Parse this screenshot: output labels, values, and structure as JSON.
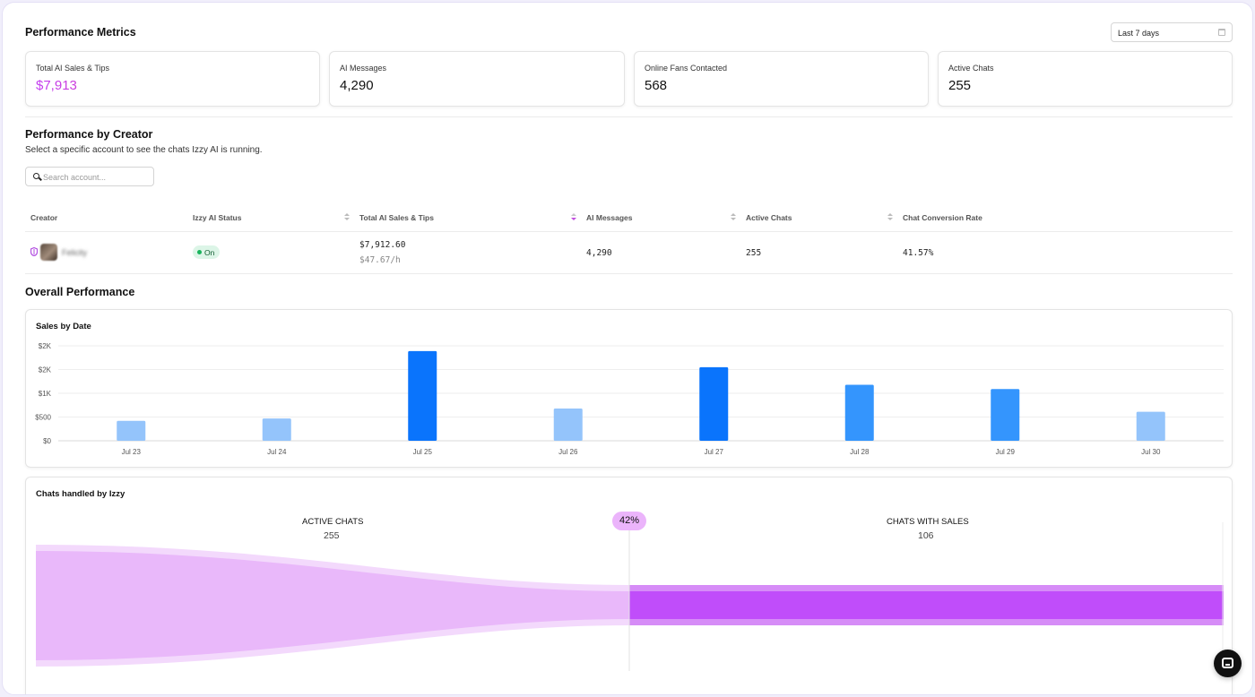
{
  "header": {
    "title": "Performance Metrics",
    "date_range": "Last 7 days"
  },
  "metrics": [
    {
      "label": "Total AI Sales & Tips",
      "value": "$7,913"
    },
    {
      "label": "AI Messages",
      "value": "4,290"
    },
    {
      "label": "Online Fans Contacted",
      "value": "568"
    },
    {
      "label": "Active Chats",
      "value": "255"
    }
  ],
  "creator_section": {
    "title": "Performance by Creator",
    "subtitle": "Select a specific account to see the chats Izzy AI is running.",
    "search_placeholder": "Search account..."
  },
  "table": {
    "columns": [
      "Creator",
      "Izzy AI Status",
      "Total AI Sales & Tips",
      "AI Messages",
      "Active Chats",
      "Chat Conversion Rate"
    ],
    "rows": [
      {
        "creator": "Felicity",
        "status": "On",
        "sales": "$7,912.60",
        "sales_rate": "$47.67/h",
        "messages": "4,290",
        "active_chats": "255",
        "conversion": "41.57%"
      }
    ]
  },
  "overall": {
    "title": "Overall Performance"
  },
  "sales_chart": {
    "title": "Sales by Date"
  },
  "chart_data": {
    "type": "bar",
    "title": "Sales by Date",
    "categories": [
      "Jul 23",
      "Jul 24",
      "Jul 25",
      "Jul 26",
      "Jul 27",
      "Jul 28",
      "Jul 29",
      "Jul 30"
    ],
    "values": [
      420,
      470,
      1890,
      680,
      1550,
      1180,
      1090,
      610
    ],
    "ytick_labels": [
      "$0",
      "$500",
      "$1K",
      "$2K",
      "$2K"
    ],
    "ytick_values": [
      0,
      500,
      1000,
      1500,
      2000
    ],
    "ylim": [
      0,
      2000
    ],
    "grid": true,
    "colors": {
      "low": "#94c4fb",
      "mid": "#3495fd",
      "high": "#0a74fc"
    }
  },
  "funnel": {
    "title": "Chats handled by Izzy",
    "left_label": "ACTIVE CHATS",
    "left_value": "255",
    "right_label": "CHATS WITH SALES",
    "right_value": "106",
    "rate": "42%",
    "colors": {
      "light": "#e9b8fa",
      "light_edge": "#f3d9fc",
      "strong": "#c04dfa",
      "strong_edge": "#d68cf7"
    }
  }
}
